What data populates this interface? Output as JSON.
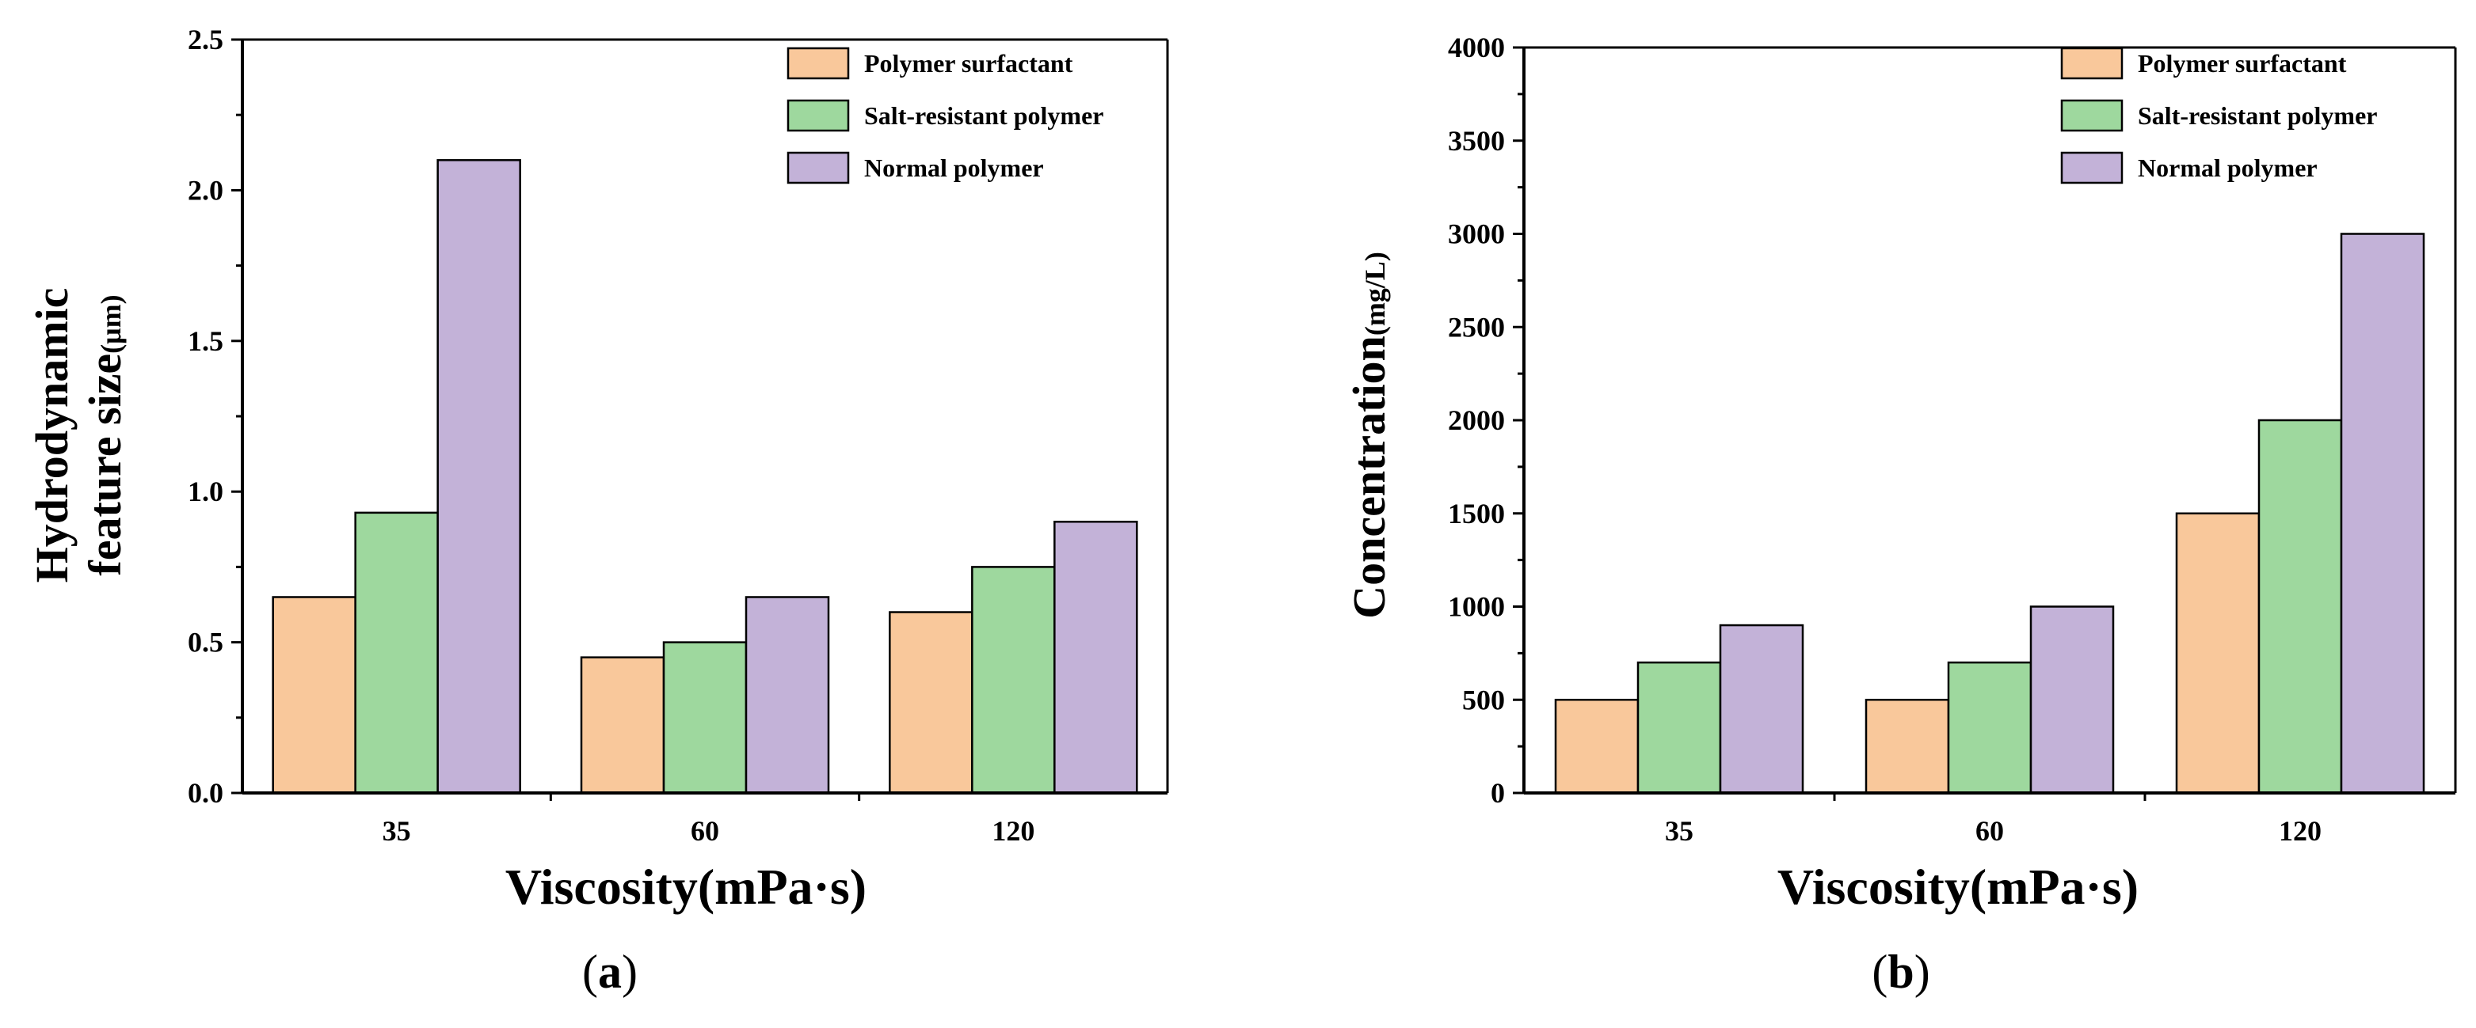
{
  "colors": {
    "polymer_surfactant": "#F9C89B",
    "salt_resistant_polymer": "#9ED89E",
    "normal_polymer": "#C3B2D8",
    "axis": "#000000",
    "bar_stroke": "#000000"
  },
  "chart_data": [
    {
      "type": "bar",
      "panel": "a",
      "categories": [
        "35",
        "60",
        "120"
      ],
      "series": [
        {
          "name": "Polymer surfactant",
          "color_key": "polymer_surfactant",
          "values": [
            0.65,
            0.45,
            0.6
          ]
        },
        {
          "name": "Salt-resistant polymer",
          "color_key": "salt_resistant_polymer",
          "values": [
            0.93,
            0.5,
            0.75
          ]
        },
        {
          "name": "Normal polymer",
          "color_key": "normal_polymer",
          "values": [
            2.1,
            0.65,
            0.9
          ]
        }
      ],
      "xlabel": "Viscosity(mPa·s)",
      "ylabel_line1": "Hydrodynamic",
      "ylabel_line2": "feature size",
      "ylabel_unit": "(μm)",
      "ylim": [
        0,
        2.5
      ],
      "yticks": [
        "0.0",
        "0.5",
        "1.0",
        "1.5",
        "2.0",
        "2.5"
      ],
      "legend_position": "top-right",
      "grid": false
    },
    {
      "type": "bar",
      "panel": "b",
      "categories": [
        "35",
        "60",
        "120"
      ],
      "series": [
        {
          "name": "Polymer surfactant",
          "color_key": "polymer_surfactant",
          "values": [
            500,
            500,
            1500
          ]
        },
        {
          "name": "Salt-resistant polymer",
          "color_key": "salt_resistant_polymer",
          "values": [
            700,
            700,
            2000
          ]
        },
        {
          "name": "Normal polymer",
          "color_key": "normal_polymer",
          "values": [
            900,
            1000,
            3000
          ]
        }
      ],
      "xlabel": "Viscosity(mPa·s)",
      "ylabel": "Concentration",
      "ylabel_unit": "(mg/L)",
      "ylim": [
        0,
        4000
      ],
      "yticks": [
        "0",
        "500",
        "1000",
        "1500",
        "2000",
        "2500",
        "3000",
        "3500",
        "4000"
      ],
      "legend_position": "top-left",
      "grid": false
    }
  ],
  "panel_labels": [
    {
      "open": "(",
      "letter": "a",
      "close": ")"
    },
    {
      "open": "(",
      "letter": "b",
      "close": ")"
    }
  ]
}
